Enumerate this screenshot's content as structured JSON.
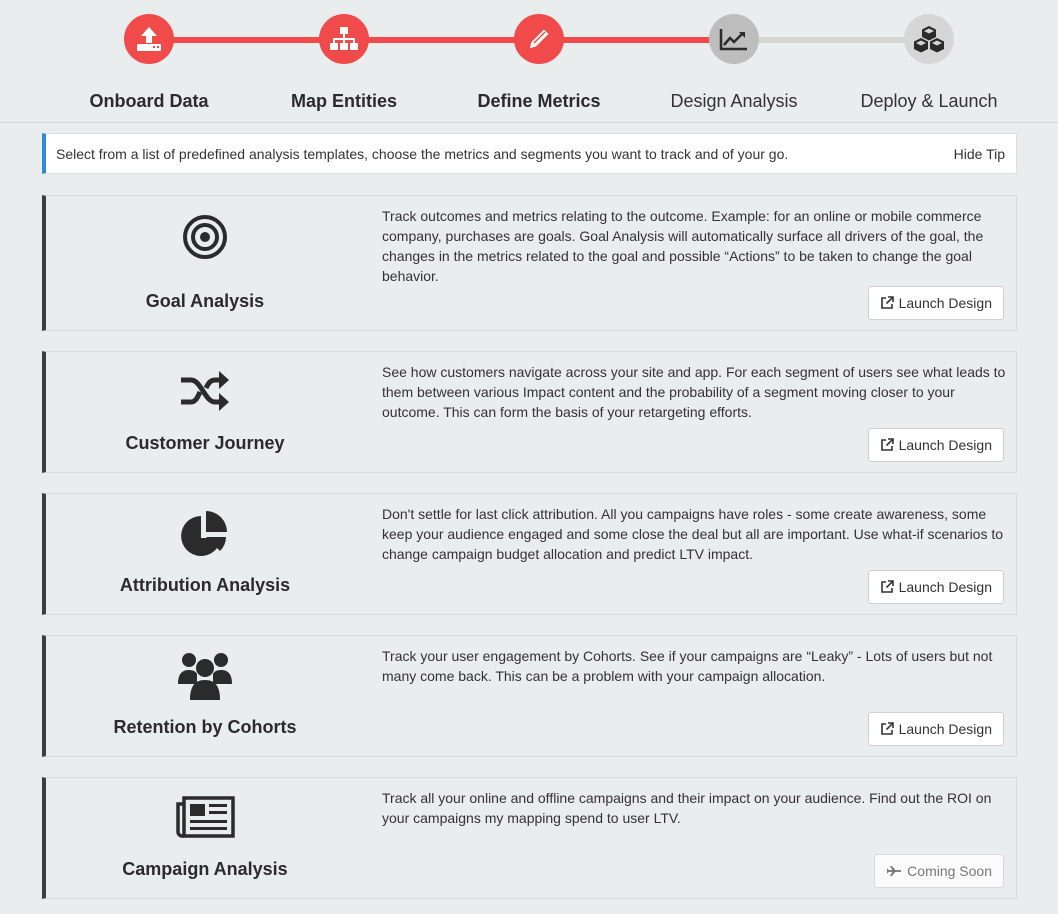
{
  "stepper": {
    "steps": [
      {
        "label": "Onboard Data",
        "icon": "upload-icon",
        "state": "done"
      },
      {
        "label": "Map Entities",
        "icon": "sitemap-icon",
        "state": "done"
      },
      {
        "label": "Define Metrics",
        "icon": "pencil-icon",
        "state": "done"
      },
      {
        "label": "Design Analysis",
        "icon": "line-chart-icon",
        "state": "current"
      },
      {
        "label": "Deploy & Launch",
        "icon": "cubes-icon",
        "state": "future"
      }
    ],
    "colors": {
      "done": "#f04a4a",
      "pending": "#d6d6d6",
      "current": "#bdbdbd"
    }
  },
  "tip": {
    "text": "Select from a list of predefined analysis templates, choose the metrics and segments you want to track and of your go.",
    "hide_label": "Hide Tip",
    "accent": "#2c8ad8"
  },
  "cards": [
    {
      "title": "Goal Analysis",
      "icon": "bullseye-icon",
      "description": "Track outcomes and metrics relating to the outcome. Example: for an online or mobile commerce company, purchases are goals. Goal Analysis will automatically surface all drivers of the goal, the changes in the metrics related to the goal and possible “Actions” to be taken to change the goal behavior.",
      "button": "Launch Design",
      "button_icon": "external-link-icon"
    },
    {
      "title": "Customer Journey",
      "icon": "shuffle-icon",
      "description": "See how customers navigate across your site and app. For each segment of users see what leads to them between various Impact content and the probability of a segment moving closer to your outcome. This can form the basis of your retargeting efforts.",
      "button": "Launch Design",
      "button_icon": "external-link-icon"
    },
    {
      "title": "Attribution Analysis",
      "icon": "pie-chart-icon",
      "description": "Don't settle for last click attribution. All you campaigns have roles - some create awareness, some keep your audience engaged and some close the deal but all are important. Use what-if scenarios to change campaign budget allocation and predict LTV impact.",
      "button": "Launch Design",
      "button_icon": "external-link-icon"
    },
    {
      "title": "Retention by Cohorts",
      "icon": "users-icon",
      "description": "Track your user engagement by Cohorts. See if your campaigns are “Leaky” - Lots of users but not many come back. This can be a problem with your campaign allocation.",
      "button": "Launch Design",
      "button_icon": "external-link-icon"
    },
    {
      "title": "Campaign Analysis",
      "icon": "newspaper-icon",
      "description": "Track all your online and offline campaigns and their impact on your audience. Find out the ROI on your campaigns my mapping spend to user LTV.",
      "button": "Coming Soon",
      "button_icon": "plane-icon"
    }
  ]
}
